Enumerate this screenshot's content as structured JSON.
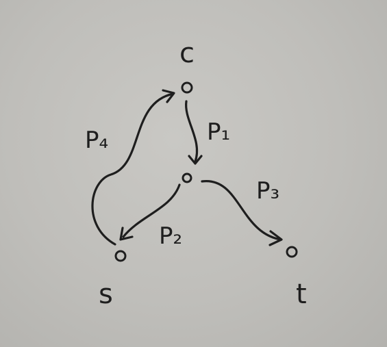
{
  "nodes": {
    "c": {
      "label": "c"
    },
    "m": {
      "label": ""
    },
    "s": {
      "label": "s"
    },
    "t": {
      "label": "t"
    }
  },
  "edges": [
    {
      "id": "p1",
      "label": "P₁",
      "from": "c",
      "to": "m"
    },
    {
      "id": "p2",
      "label": "P₂",
      "from": "m",
      "to": "s"
    },
    {
      "id": "p3",
      "label": "P₃",
      "from": "m",
      "to": "t"
    },
    {
      "id": "p4",
      "label": "P₄",
      "from": "s",
      "to": "c"
    }
  ],
  "colors": {
    "ink": "#1e1e1e",
    "paper": "#c4c3bf"
  }
}
